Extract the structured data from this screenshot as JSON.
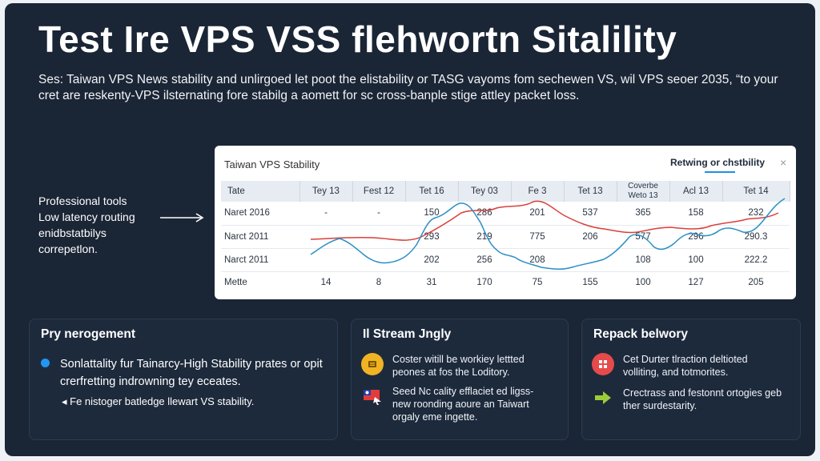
{
  "header": {
    "title": "Test Ire VPS VSS flehwortn Sitalility",
    "subtitle": "Ses: Taiwan VPS News stability and unlirgoed let poot the elistability or TASG vayoms fom sechewen VS, wil VPS seoer 2035, “to your cret are reskenty-VPS ilsternating fore stabilg a aomett for sc cross-banple stige attley packet loss."
  },
  "side_notes": [
    "Professional tools",
    "Low latency routing",
    "enidbstatbilys",
    "correpetlon."
  ],
  "chart_card": {
    "title": "Taiwan VPS Stability",
    "tab_label": "Retwing or chstbility",
    "close_glyph": "×",
    "columns": [
      "Tate",
      "Tey 13",
      "Fest 12",
      "Tet 16",
      "Tey 03",
      "Fe 3",
      "Tet 13",
      "Coverbe Weto 13",
      "Acl 13",
      "Tet 14"
    ],
    "rows": [
      [
        "Naret 2016",
        "-",
        "-",
        "150",
        "286",
        "201",
        "537",
        "365",
        "158",
        "232"
      ],
      [
        "Narct 2011",
        "",
        "",
        "293",
        "219",
        "775",
        "206",
        "577",
        "296",
        "290.3"
      ],
      [
        "Narct 2011",
        "",
        "",
        "202",
        "256",
        "208",
        "",
        "108",
        "100",
        "222.2"
      ],
      [
        "Mette",
        "14",
        "8",
        "31",
        "170",
        "75",
        "155",
        "100",
        "127",
        "205"
      ]
    ],
    "series_colors": {
      "red": "#d9403a",
      "blue": "#2b8fc6"
    }
  },
  "panels": {
    "mgmt": {
      "title": "Pry nerogement",
      "text1": "Sonlattality fur Tainarcy-High Stability prates or opit crerfretting indrowning tey eceates.",
      "text2": "◂ Fe nistoger batledge llewart VS stability."
    },
    "stream": {
      "title": "Il Stream Jngly",
      "items": [
        {
          "icon": "server-icon",
          "text": "Coster witill be workiey lettted peones at fos the Loditory."
        },
        {
          "icon": "flag-icon",
          "text": "Seed Nc cality efflaciet ed ligss- new roonding aoure an Taiwart orgaly eme ingette."
        }
      ]
    },
    "repack": {
      "title": "Repack belwory",
      "items": [
        {
          "icon": "grid-icon",
          "text": "Cet Durter tlraction deltioted volliting, and totmorites."
        },
        {
          "icon": "arrow-right-icon",
          "text": "Crectrass and festonnt ortogies geb ther surdestarity."
        }
      ]
    }
  }
}
